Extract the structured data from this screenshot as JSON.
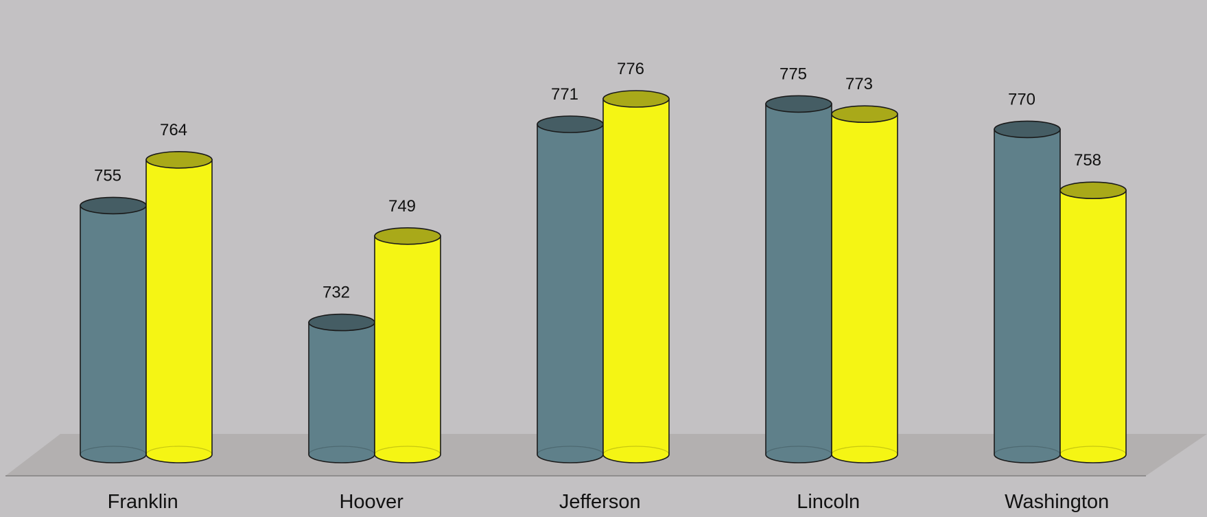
{
  "chart_data": {
    "type": "bar",
    "style": "3d-cylinder",
    "categories": [
      "Franklin",
      "Hoover",
      "Jefferson",
      "Lincoln",
      "Washington"
    ],
    "series": [
      {
        "values": [
          755,
          732,
          771,
          775,
          770
        ]
      },
      {
        "values": [
          764,
          749,
          776,
          773,
          758
        ]
      }
    ],
    "ylim": [
      706,
      781
    ],
    "grid": false,
    "legend": "none",
    "colors": {
      "background": "#c3c1c3",
      "floor": "#b3b0b0",
      "series_body": [
        "#5f808a",
        "#f5f514"
      ],
      "series_top": [
        "#455d64",
        "#a9a919"
      ],
      "outline": "#1a1a1a"
    }
  }
}
